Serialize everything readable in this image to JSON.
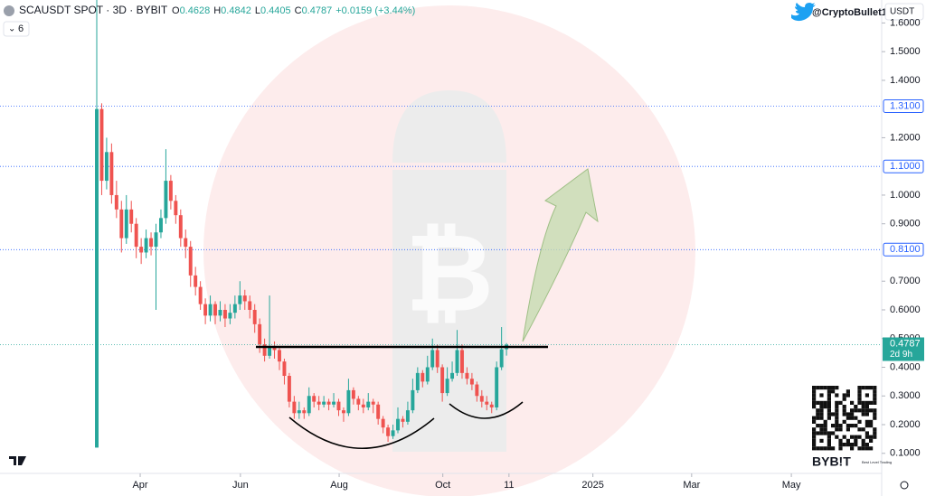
{
  "chart_data": {
    "type": "candlestick",
    "title": "SCAUSDT SPOT · 3D · BYBIT",
    "ohlc_labels": [
      "O",
      "H",
      "L",
      "C"
    ],
    "change": "+0.0159 (+3.44%)",
    "indicator_count": "6",
    "watermark_handle": "@CryptoBullet1",
    "currency": "USDT",
    "countdown": "2d 9h",
    "brand": "BYB!T",
    "brand_tagline": "Best Level Trading",
    "up_color": "#26a69a",
    "down_color": "#ef5350",
    "level_color": "#2962ff",
    "candles": [
      [
        0.12,
        1.68,
        0.12,
        1.3
      ],
      [
        1.3,
        1.32,
        1.0,
        1.05
      ],
      [
        1.05,
        1.2,
        1.02,
        1.15
      ],
      [
        1.15,
        1.18,
        0.97,
        1.0
      ],
      [
        1.0,
        1.05,
        0.92,
        0.95
      ],
      [
        0.95,
        0.98,
        0.8,
        0.85
      ],
      [
        0.85,
        1.0,
        0.83,
        0.95
      ],
      [
        0.95,
        0.98,
        0.87,
        0.9
      ],
      [
        0.9,
        0.92,
        0.78,
        0.82
      ],
      [
        0.82,
        0.85,
        0.76,
        0.8
      ],
      [
        0.8,
        0.88,
        0.78,
        0.85
      ],
      [
        0.85,
        0.87,
        0.79,
        0.82
      ],
      [
        0.82,
        0.9,
        0.6,
        0.87
      ],
      [
        0.87,
        0.95,
        0.85,
        0.92
      ],
      [
        0.92,
        1.16,
        0.9,
        1.05
      ],
      [
        1.05,
        1.07,
        0.95,
        0.98
      ],
      [
        0.98,
        1.0,
        0.9,
        0.93
      ],
      [
        0.93,
        0.95,
        0.82,
        0.85
      ],
      [
        0.85,
        0.88,
        0.78,
        0.82
      ],
      [
        0.82,
        0.84,
        0.68,
        0.72
      ],
      [
        0.72,
        0.75,
        0.65,
        0.68
      ],
      [
        0.68,
        0.7,
        0.6,
        0.62
      ],
      [
        0.62,
        0.64,
        0.55,
        0.58
      ],
      [
        0.58,
        0.65,
        0.56,
        0.62
      ],
      [
        0.62,
        0.63,
        0.55,
        0.58
      ],
      [
        0.58,
        0.63,
        0.56,
        0.6
      ],
      [
        0.6,
        0.62,
        0.54,
        0.57
      ],
      [
        0.57,
        0.62,
        0.55,
        0.59
      ],
      [
        0.59,
        0.65,
        0.57,
        0.62
      ],
      [
        0.62,
        0.7,
        0.6,
        0.65
      ],
      [
        0.65,
        0.67,
        0.6,
        0.63
      ],
      [
        0.63,
        0.65,
        0.57,
        0.6
      ],
      [
        0.6,
        0.62,
        0.52,
        0.55
      ],
      [
        0.55,
        0.57,
        0.45,
        0.48
      ],
      [
        0.48,
        0.5,
        0.42,
        0.44
      ],
      [
        0.44,
        0.65,
        0.43,
        0.47
      ],
      [
        0.47,
        0.49,
        0.43,
        0.46
      ],
      [
        0.46,
        0.47,
        0.39,
        0.42
      ],
      [
        0.42,
        0.43,
        0.34,
        0.37
      ],
      [
        0.37,
        0.38,
        0.26,
        0.28
      ],
      [
        0.28,
        0.3,
        0.22,
        0.24
      ],
      [
        0.24,
        0.28,
        0.22,
        0.25
      ],
      [
        0.25,
        0.26,
        0.22,
        0.24
      ],
      [
        0.24,
        0.33,
        0.23,
        0.3
      ],
      [
        0.3,
        0.31,
        0.26,
        0.28
      ],
      [
        0.28,
        0.3,
        0.25,
        0.27
      ],
      [
        0.27,
        0.3,
        0.26,
        0.28
      ],
      [
        0.28,
        0.29,
        0.25,
        0.27
      ],
      [
        0.27,
        0.31,
        0.26,
        0.28
      ],
      [
        0.28,
        0.29,
        0.23,
        0.25
      ],
      [
        0.25,
        0.26,
        0.21,
        0.24
      ],
      [
        0.24,
        0.36,
        0.23,
        0.32
      ],
      [
        0.32,
        0.33,
        0.27,
        0.29
      ],
      [
        0.29,
        0.3,
        0.25,
        0.27
      ],
      [
        0.27,
        0.29,
        0.24,
        0.26
      ],
      [
        0.26,
        0.31,
        0.25,
        0.28
      ],
      [
        0.28,
        0.29,
        0.24,
        0.27
      ],
      [
        0.27,
        0.28,
        0.2,
        0.22
      ],
      [
        0.22,
        0.23,
        0.17,
        0.19
      ],
      [
        0.19,
        0.2,
        0.14,
        0.16
      ],
      [
        0.16,
        0.2,
        0.15,
        0.18
      ],
      [
        0.18,
        0.26,
        0.17,
        0.22
      ],
      [
        0.22,
        0.23,
        0.19,
        0.21
      ],
      [
        0.21,
        0.28,
        0.2,
        0.25
      ],
      [
        0.25,
        0.36,
        0.24,
        0.32
      ],
      [
        0.32,
        0.4,
        0.31,
        0.38
      ],
      [
        0.38,
        0.39,
        0.33,
        0.35
      ],
      [
        0.35,
        0.44,
        0.34,
        0.4
      ],
      [
        0.4,
        0.5,
        0.39,
        0.46
      ],
      [
        0.46,
        0.48,
        0.38,
        0.4
      ],
      [
        0.4,
        0.41,
        0.28,
        0.31
      ],
      [
        0.31,
        0.4,
        0.3,
        0.36
      ],
      [
        0.36,
        0.42,
        0.35,
        0.38
      ],
      [
        0.38,
        0.53,
        0.37,
        0.46
      ],
      [
        0.46,
        0.48,
        0.36,
        0.38
      ],
      [
        0.38,
        0.4,
        0.34,
        0.36
      ],
      [
        0.36,
        0.38,
        0.32,
        0.34
      ],
      [
        0.34,
        0.35,
        0.28,
        0.3
      ],
      [
        0.3,
        0.32,
        0.26,
        0.28
      ],
      [
        0.28,
        0.3,
        0.25,
        0.27
      ],
      [
        0.27,
        0.28,
        0.24,
        0.26
      ],
      [
        0.26,
        0.42,
        0.25,
        0.4
      ],
      [
        0.4,
        0.54,
        0.39,
        0.4628
      ],
      [
        0.4628,
        0.4842,
        0.4405,
        0.4787
      ]
    ],
    "xlim": [
      -19.6,
      159
    ],
    "xticks": [
      {
        "value": 8.8,
        "label": "Apr"
      },
      {
        "value": 29.1,
        "label": "Jun"
      },
      {
        "value": 49.1,
        "label": "Aug"
      },
      {
        "value": 70.1,
        "label": "Oct"
      },
      {
        "value": 83.5,
        "label": "11"
      },
      {
        "value": 100.5,
        "label": "2025"
      },
      {
        "value": 120.5,
        "label": "Mar"
      },
      {
        "value": 140.7,
        "label": "May"
      }
    ],
    "ylim": [
      0.03,
      1.68
    ],
    "yticks": [
      {
        "value": 0.1,
        "label": "0.1000"
      },
      {
        "value": 0.2,
        "label": "0.2000"
      },
      {
        "value": 0.3,
        "label": "0.3000"
      },
      {
        "value": 0.4,
        "label": "0.4000"
      },
      {
        "value": 0.5,
        "label": "0.5000"
      },
      {
        "value": 0.6,
        "label": "0.6000"
      },
      {
        "value": 0.7,
        "label": "0.7000"
      },
      {
        "value": 0.9,
        "label": "0.9000"
      },
      {
        "value": 1.0,
        "label": "1.0000"
      },
      {
        "value": 1.2,
        "label": "1.2000"
      },
      {
        "value": 1.4,
        "label": "1.4000"
      },
      {
        "value": 1.5,
        "label": "1.5000"
      },
      {
        "value": 1.6,
        "label": "1.6000"
      }
    ],
    "levels": [
      {
        "value": 1.31,
        "label": "1.3100"
      },
      {
        "value": 1.1,
        "label": "1.1000"
      },
      {
        "value": 0.81,
        "label": "0.8100"
      }
    ],
    "grid": false
  }
}
